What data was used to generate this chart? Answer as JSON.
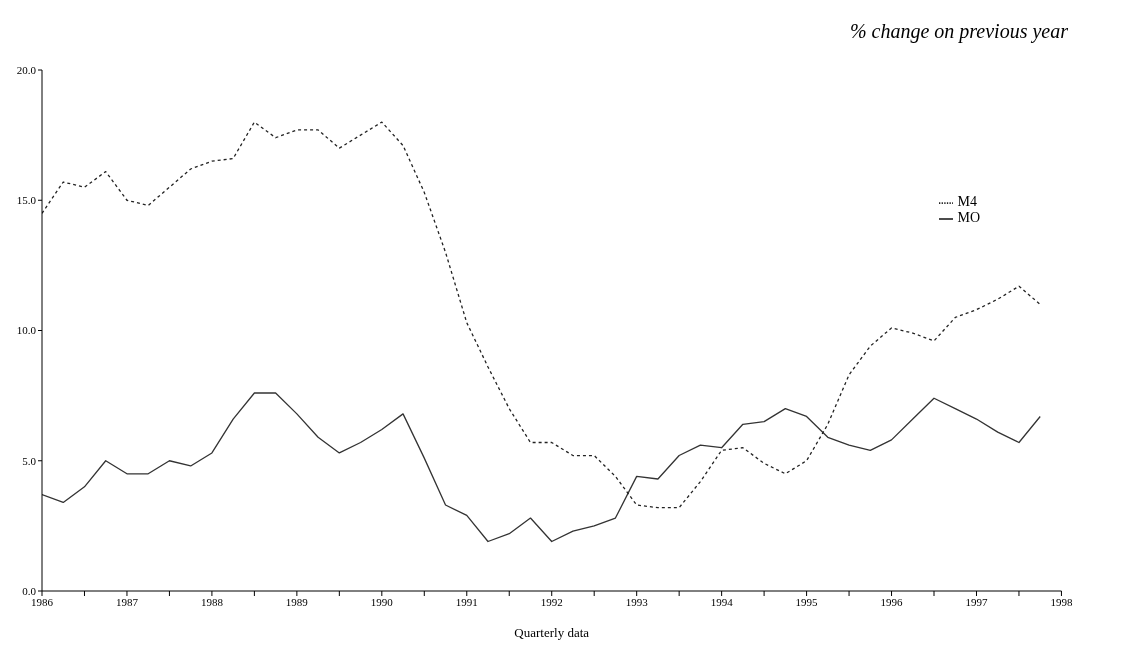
{
  "chart_data": {
    "type": "line",
    "title": "% change on previous year",
    "xlabel": "Quarterly data",
    "x": [
      1986,
      1986.25,
      1986.5,
      1986.75,
      1987,
      1987.25,
      1987.5,
      1987.75,
      1988,
      1988.25,
      1988.5,
      1988.75,
      1989,
      1989.25,
      1989.5,
      1989.75,
      1990,
      1990.25,
      1990.5,
      1990.75,
      1991,
      1991.25,
      1991.5,
      1991.75,
      1992,
      1992.25,
      1992.5,
      1992.75,
      1993,
      1993.25,
      1993.5,
      1993.75,
      1994,
      1994.25,
      1994.5,
      1994.75,
      1995,
      1995.25,
      1995.5,
      1995.75,
      1996,
      1996.25,
      1996.5,
      1996.75,
      1997,
      1997.25,
      1997.5,
      1997.75
    ],
    "series": [
      {
        "name": "MO",
        "color": "#333333",
        "line_style": "solid",
        "values": [
          3.7,
          3.4,
          4.0,
          5.0,
          4.5,
          4.5,
          5.0,
          4.8,
          5.3,
          6.6,
          7.6,
          7.6,
          6.8,
          5.9,
          5.3,
          5.7,
          6.2,
          6.8,
          5.1,
          3.3,
          2.9,
          1.9,
          2.2,
          2.8,
          1.9,
          2.3,
          2.5,
          2.8,
          4.4,
          4.3,
          5.2,
          5.6,
          5.5,
          6.4,
          6.5,
          7.0,
          6.7,
          5.9,
          5.6,
          5.4,
          5.8,
          6.6,
          7.4,
          7.0,
          6.6,
          6.1,
          5.7,
          6.7
        ]
      },
      {
        "name": "M4",
        "color": "#222222",
        "line_style": "dotted",
        "values": [
          14.5,
          15.7,
          15.5,
          16.1,
          15.0,
          14.8,
          15.5,
          16.2,
          16.5,
          16.6,
          18.0,
          17.4,
          17.7,
          17.7,
          17.0,
          17.5,
          18.0,
          17.1,
          15.3,
          13.0,
          10.3,
          8.6,
          7.0,
          5.7,
          5.7,
          5.2,
          5.2,
          4.4,
          3.3,
          3.2,
          3.2,
          4.2,
          5.4,
          5.5,
          4.9,
          4.5,
          5.0,
          6.4,
          8.3,
          9.4,
          10.1,
          9.9,
          9.6,
          10.5,
          10.8,
          11.2,
          11.7,
          11.0
        ]
      }
    ],
    "xlim": [
      1986,
      1998
    ],
    "xticks": [
      1986,
      {
        "value": 1986.5,
        "label": null
      },
      1987,
      {
        "value": 1987.5,
        "label": null
      },
      1988,
      {
        "value": 1988.5,
        "label": null
      },
      1989,
      {
        "value": 1989.5,
        "label": null
      },
      1990,
      {
        "value": 1990.5,
        "label": null
      },
      1991,
      {
        "value": 1991.5,
        "label": null
      },
      1992,
      {
        "value": 1992.5,
        "label": null
      },
      1993,
      {
        "value": 1993.5,
        "label": null
      },
      1994,
      {
        "value": 1994.5,
        "label": null
      },
      1995,
      {
        "value": 1995.5,
        "label": null
      },
      1996,
      {
        "value": 1996.5,
        "label": null
      },
      1997,
      {
        "value": 1997.5,
        "label": null
      },
      1998
    ],
    "ylim": [
      0,
      20
    ],
    "yticks": [
      {
        "value": 0,
        "label": "0.0"
      },
      {
        "value": 5,
        "label": "5.0"
      },
      {
        "value": 10,
        "label": "10.0"
      },
      {
        "value": 15,
        "label": "15.0"
      },
      {
        "value": 20,
        "label": "20.0"
      }
    ],
    "grid": false,
    "legend": "top right",
    "marker": "none"
  }
}
